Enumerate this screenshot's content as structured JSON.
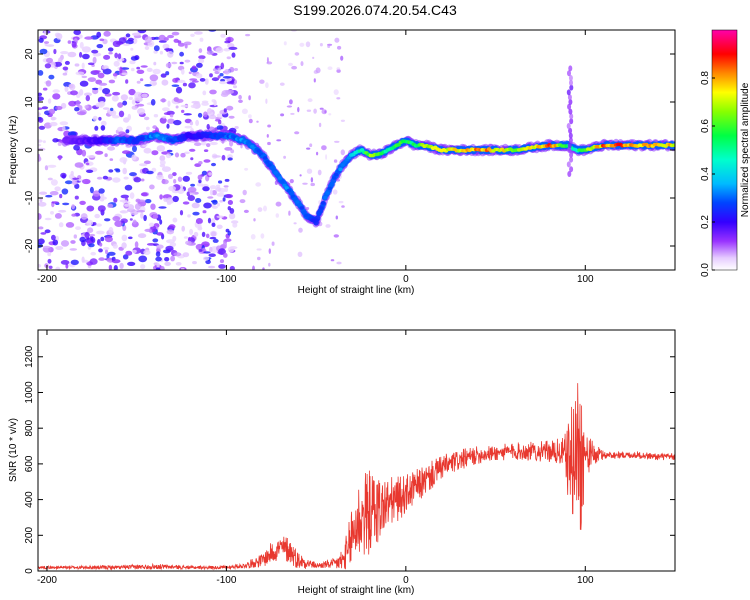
{
  "title": "S199.2026.074.20.54.C43",
  "chart_data": [
    {
      "type": "heatmap",
      "title": "S199.2026.074.20.54.C43",
      "xlabel": "Height of straight line (km)",
      "ylabel": "Frequency (Hz)",
      "xlim": [
        -205,
        150
      ],
      "ylim": [
        -25,
        25
      ],
      "xticks": [
        -200,
        -100,
        0,
        100
      ],
      "yticks": [
        -20,
        -10,
        0,
        10,
        20
      ],
      "colorbar": {
        "label": "Normalized spectral amplitude",
        "range": [
          0,
          1
        ],
        "ticks": [
          0.0,
          0.2,
          0.4,
          0.6,
          0.8
        ],
        "colors": [
          "#ffffff",
          "#e6ccff",
          "#9933ff",
          "#4400cc",
          "#0000ff",
          "#00ccff",
          "#00ff66",
          "#99ff00",
          "#ffff00",
          "#ff8800",
          "#ff0000",
          "#ff00aa"
        ]
      },
      "ridge": {
        "description": "dominant frequency track",
        "x": [
          -190,
          -170,
          -160,
          -150,
          -140,
          -130,
          -120,
          -110,
          -100,
          -90,
          -80,
          -70,
          -60,
          -55,
          -50,
          -45,
          -40,
          -35,
          -30,
          -25,
          -20,
          -15,
          -10,
          -5,
          0,
          5,
          10,
          20,
          30,
          40,
          50,
          60,
          70,
          80,
          90,
          95,
          100,
          110,
          120,
          130,
          140,
          150
        ],
        "y": [
          2,
          2,
          2,
          2,
          3,
          2,
          3,
          3,
          3,
          2,
          -1,
          -6,
          -11,
          -14,
          -15,
          -10,
          -6,
          -3,
          -1,
          0,
          -1,
          -1,
          0,
          1,
          2,
          1,
          1,
          0,
          0,
          0,
          0,
          0,
          0.5,
          1,
          1,
          0,
          0,
          1,
          1,
          1,
          1,
          1
        ],
        "amplitude": [
          0.15,
          0.2,
          0.3,
          0.25,
          0.35,
          0.3,
          0.2,
          0.25,
          0.3,
          0.35,
          0.3,
          0.35,
          0.3,
          0.3,
          0.25,
          0.3,
          0.3,
          0.35,
          0.4,
          0.5,
          0.7,
          0.6,
          0.5,
          0.6,
          0.6,
          0.55,
          0.7,
          0.75,
          0.8,
          0.85,
          0.8,
          0.7,
          0.75,
          0.9,
          0.6,
          0.5,
          0.7,
          0.85,
          0.9,
          0.85,
          0.8,
          0.8
        ]
      },
      "noise_region_x": [
        -205,
        -95
      ],
      "noise_region_y": [
        -25,
        25
      ]
    },
    {
      "type": "line",
      "xlabel": "Height of straight line (km)",
      "ylabel": "SNR (10 * v/v)",
      "xlim": [
        -205,
        150
      ],
      "ylim": [
        0,
        1350
      ],
      "xticks": [
        -200,
        -100,
        0,
        100
      ],
      "yticks": [
        0,
        200,
        400,
        600,
        800,
        1000,
        1200
      ],
      "series": [
        {
          "name": "SNR",
          "color": "#e8382f",
          "envelope": {
            "x": [
              -205,
              -180,
              -160,
              -140,
              -120,
              -100,
              -90,
              -80,
              -75,
              -70,
              -65,
              -60,
              -50,
              -40,
              -35,
              -32,
              -30,
              -28,
              -25,
              -22,
              -20,
              -15,
              -10,
              -5,
              0,
              10,
              20,
              30,
              40,
              50,
              60,
              70,
              80,
              88,
              92,
              94,
              96,
              97,
              98,
              100,
              110,
              120,
              130,
              140,
              150
            ],
            "base": [
              20,
              20,
              20,
              25,
              20,
              20,
              30,
              60,
              100,
              130,
              120,
              60,
              30,
              40,
              60,
              100,
              200,
              250,
              300,
              320,
              330,
              350,
              380,
              400,
              430,
              500,
              580,
              620,
              650,
              660,
              670,
              670,
              670,
              660,
              600,
              650,
              680,
              700,
              650,
              650,
              650,
              650,
              650,
              640,
              640
            ],
            "amp": [
              8,
              10,
              12,
              15,
              10,
              10,
              15,
              40,
              60,
              70,
              80,
              50,
              15,
              30,
              80,
              150,
              220,
              240,
              250,
              250,
              240,
              200,
              150,
              130,
              110,
              90,
              70,
              60,
              50,
              45,
              50,
              55,
              60,
              90,
              300,
              400,
              500,
              600,
              450,
              120,
              25,
              20,
              20,
              20,
              20
            ]
          }
        }
      ]
    }
  ]
}
